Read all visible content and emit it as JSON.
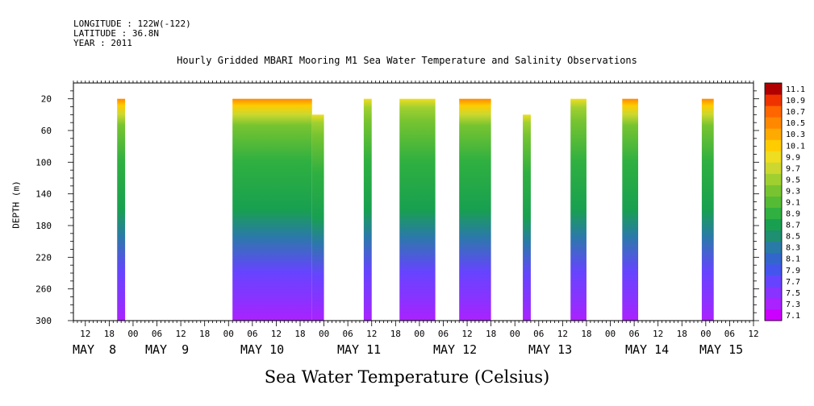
{
  "header": {
    "longitude": "LONGITUDE : 122W(-122)",
    "latitude": "LATITUDE : 36.8N",
    "year": "YEAR : 2011"
  },
  "chart_data": {
    "type": "heatmap",
    "title": "Hourly Gridded MBARI Mooring M1 Sea Water Temperature and Salinity Observations",
    "ylabel": "DEPTH (m)",
    "colorbar_label": "Sea Water Temperature (Celsius)",
    "y_axis": {
      "min": 0,
      "max": 300,
      "reversed": true,
      "ticks": [
        20,
        60,
        100,
        140,
        180,
        220,
        260,
        300
      ]
    },
    "x_axis": {
      "range_hours_labels": [
        "12",
        "18",
        "00",
        "06",
        "12",
        "18",
        "00",
        "06",
        "12",
        "18",
        "00",
        "06",
        "12",
        "18",
        "00",
        "06",
        "12",
        "18",
        "00",
        "06",
        "12",
        "18",
        "00",
        "06",
        "12",
        "18",
        "00",
        "06",
        "12"
      ],
      "day_labels": [
        "MAY  8",
        "MAY  9",
        "MAY 10",
        "MAY 11",
        "MAY 12",
        "MAY 13",
        "MAY 14",
        "MAY 15"
      ]
    },
    "colorbar": {
      "levels": [
        "7.1",
        "7.3",
        "7.5",
        "7.7",
        "7.9",
        "8.1",
        "8.3",
        "8.5",
        "8.7",
        "8.9",
        "9.1",
        "9.3",
        "9.5",
        "9.7",
        "9.9",
        "10.1",
        "10.3",
        "10.5",
        "10.7",
        "10.9",
        "11.1"
      ],
      "colors": [
        "#cc00ff",
        "#aa22ff",
        "#8833ff",
        "#6644ff",
        "#4455ee",
        "#3366cc",
        "#2a7aa8",
        "#1e8f70",
        "#18a050",
        "#30b040",
        "#55bb35",
        "#77c430",
        "#a0d030",
        "#ccd830",
        "#eedd20",
        "#ffcc00",
        "#ffaa00",
        "#ff8800",
        "#ff6600",
        "#ee3300",
        "#b00000"
      ]
    },
    "segments": [
      {
        "start": "May 8 20:00",
        "end": "May 8 22:00",
        "top_depth_m": 20,
        "bottom_depth_m": 300,
        "warm_top": true
      },
      {
        "start": "May 10 01:00",
        "end": "May 10 21:00",
        "top_depth_m": 20,
        "bottom_depth_m": 300,
        "warm_top": true
      },
      {
        "start": "May 10 21:00",
        "end": "May 11 00:00",
        "top_depth_m": 40,
        "bottom_depth_m": 300,
        "warm_top": false
      },
      {
        "start": "May 11 10:00",
        "end": "May 11 12:00",
        "top_depth_m": 20,
        "bottom_depth_m": 300,
        "warm_top": false
      },
      {
        "start": "May 11 19:00",
        "end": "May 12 04:00",
        "top_depth_m": 20,
        "bottom_depth_m": 300,
        "warm_top": false
      },
      {
        "start": "May 12 10:00",
        "end": "May 12 18:00",
        "top_depth_m": 20,
        "bottom_depth_m": 300,
        "warm_top": true
      },
      {
        "start": "May 13 02:00",
        "end": "May 13 04:00",
        "top_depth_m": 40,
        "bottom_depth_m": 300,
        "warm_top": false
      },
      {
        "start": "May 13 14:00",
        "end": "May 13 18:00",
        "top_depth_m": 20,
        "bottom_depth_m": 300,
        "warm_top": false
      },
      {
        "start": "May 14 03:00",
        "end": "May 14 07:00",
        "top_depth_m": 20,
        "bottom_depth_m": 300,
        "warm_top": true
      },
      {
        "start": "May 14 23:00",
        "end": "May 15 02:00",
        "top_depth_m": 20,
        "bottom_depth_m": 300,
        "warm_top": true
      }
    ]
  }
}
